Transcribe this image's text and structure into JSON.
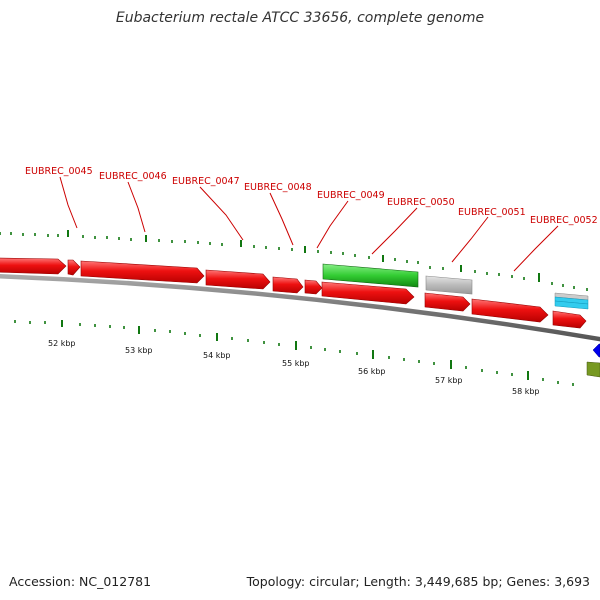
{
  "title": "Eubacterium rectale ATCC 33656, complete genome",
  "footer": {
    "accession": "Accession: NC_012781",
    "summary": "Topology: circular; Length: 3,449,685 bp; Genes: 3,693"
  },
  "gene_labels": [
    "EUBREC_0045",
    "EUBREC_0046",
    "EUBREC_0047",
    "EUBREC_0048",
    "EUBREC_0049",
    "EUBREC_0050",
    "EUBREC_0051",
    "EUBREC_0052"
  ],
  "kbp_labels": [
    "52 kbp",
    "53 kbp",
    "54 kbp",
    "55 kbp",
    "56 kbp",
    "57 kbp",
    "58 kbp"
  ],
  "colors": {
    "cds": "#ee1111",
    "rna_green": "#33cc33",
    "grey_feature": "#bbbbbb",
    "cyan_feature": "#33ccee",
    "blue_feature": "#0000ee",
    "olive_feature": "#779922",
    "backbone": "#777777",
    "ticks": "#117711",
    "label": "#cc0000"
  }
}
